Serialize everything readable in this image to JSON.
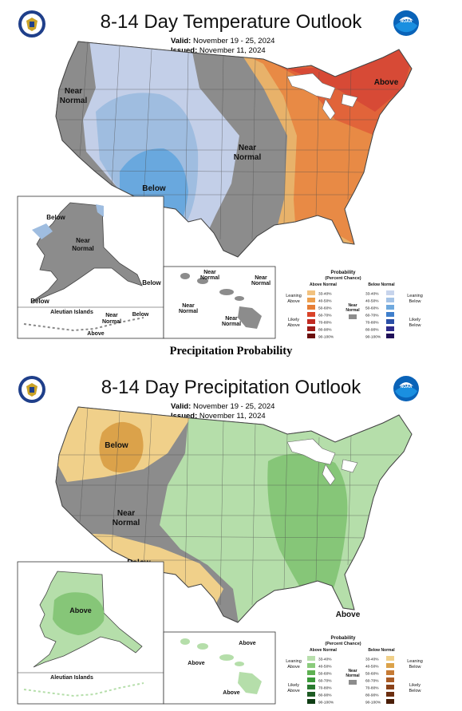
{
  "temperature": {
    "title": "8-14 Day Temperature Outlook",
    "valid_label": "Valid:",
    "valid_value": "November 19 - 25, 2024",
    "issued_label": "Issued:",
    "issued_value": "November 11, 2024",
    "map_labels": {
      "near_normal_west_1": "Near",
      "near_normal_west_2": "Normal",
      "near_normal_central_1": "Near",
      "near_normal_central_2": "Normal",
      "below_west": "Below",
      "above_northeast": "Above"
    },
    "alaska_labels": {
      "below_top": "Below",
      "near_1": "Near",
      "near_2": "Normal",
      "below_right": "Below",
      "below_bottom": "Below",
      "aleutian": "Aleutian Islands",
      "aleut_near_1": "Near",
      "aleut_near_2": "Normal",
      "aleut_below": "Below",
      "aleut_above": "Above"
    },
    "hawaii_labels": {
      "n1a": "Near",
      "n1b": "Normal",
      "n2a": "Near",
      "n2b": "Normal",
      "n3a": "Near",
      "n3b": "Normal",
      "n4a": "Near",
      "n4b": "Normal"
    },
    "colors": {
      "near_normal": "#8c8c8c",
      "below_33": "#c3cfe8",
      "below_40": "#9fbde0",
      "below_50": "#69a8de",
      "above_33": "#e8b26a",
      "above_40": "#e88a45",
      "above_50": "#e1643a",
      "above_60": "#d74a36"
    }
  },
  "section_heading": "Precipitation Probability",
  "precipitation": {
    "title": "8-14 Day Precipitation Outlook",
    "valid_label": "Valid:",
    "valid_value": "November 19 - 25, 2024",
    "issued_label": "Issued:",
    "issued_value": "November 11, 2024",
    "map_labels": {
      "below_nw": "Below",
      "near_normal_1": "Near",
      "near_normal_2": "Normal",
      "below_sw": "Below",
      "above_se": "Above"
    },
    "alaska_labels": {
      "above": "Above",
      "aleutian": "Aleutian Islands"
    },
    "hawaii_labels": {
      "above_1": "Above",
      "above_2": "Above",
      "above_3": "Above"
    },
    "colors": {
      "near_normal": "#8c8c8c",
      "below_33": "#f0d08a",
      "below_40": "#dba24a",
      "above_33": "#b5deaa",
      "above_40": "#86c678"
    }
  },
  "legend": {
    "title_1": "Probability",
    "title_2": "(Percent Chance)",
    "above_header": "Above Normal",
    "below_header": "Below Normal",
    "leaning_1": "Leaning",
    "leaning_above": "Above",
    "leaning_below": "Below",
    "likely_1": "Likely",
    "likely_above": "Above",
    "likely_below": "Below",
    "near_1": "Near",
    "near_2": "Normal",
    "bins": [
      "33-40%",
      "40-50%",
      "50-60%",
      "60-70%",
      "70-80%",
      "80-90%",
      "90-100%"
    ],
    "temp_above_colors": [
      "#f2c27f",
      "#eda04e",
      "#e67e36",
      "#d9432a",
      "#c12a22",
      "#9e1b18",
      "#6b0f0d"
    ],
    "temp_below_colors": [
      "#c7d4ec",
      "#a4c3e6",
      "#6fa9de",
      "#3f7fcc",
      "#2a4fa6",
      "#2d2a8a",
      "#1f0f58"
    ],
    "prec_above_colors": [
      "#b8dfad",
      "#8acb7c",
      "#5eb152",
      "#3b9a3a",
      "#2a7a2f",
      "#1e5c24",
      "#0f3d14"
    ],
    "prec_below_colors": [
      "#f0d08a",
      "#dba24a",
      "#c67a34",
      "#a95b25",
      "#8a4219",
      "#6c2f10",
      "#4a1e08"
    ]
  }
}
